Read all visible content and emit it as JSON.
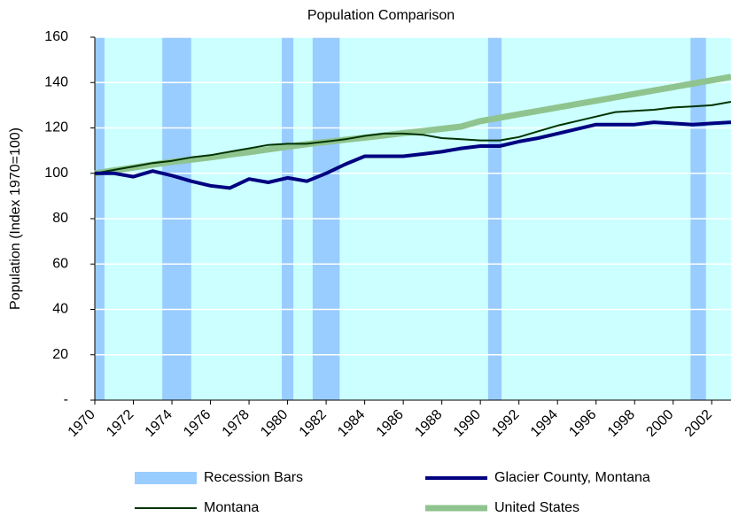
{
  "chart_data": {
    "type": "line",
    "title": "Population Comparison",
    "y_label": "Population (Index 1970=100)",
    "x": [
      1970,
      1971,
      1972,
      1973,
      1974,
      1975,
      1976,
      1977,
      1978,
      1979,
      1980,
      1981,
      1982,
      1983,
      1984,
      1985,
      1986,
      1987,
      1988,
      1989,
      1990,
      1991,
      1992,
      1993,
      1994,
      1995,
      1996,
      1997,
      1998,
      1999,
      2000,
      2001,
      2002,
      2003
    ],
    "recessions": {
      "name": "Recession Bars",
      "color": "#99ccff",
      "ranges": [
        [
          1970,
          1970.5
        ],
        [
          1973.5,
          1975
        ],
        [
          1979.7,
          1980.3
        ],
        [
          1981.3,
          1982.7
        ],
        [
          1990.4,
          1991.1
        ],
        [
          2000.9,
          2001.7
        ]
      ]
    },
    "series": [
      {
        "name": "Glacier County, Montana",
        "color": "#000080",
        "width": 4,
        "values": [
          100,
          100,
          98.5,
          101,
          99,
          96.5,
          94.5,
          93.5,
          97.5,
          96,
          98,
          96.5,
          100,
          104,
          107.5,
          107.5,
          107.5,
          108.5,
          109.5,
          111,
          112,
          112,
          114,
          115.5,
          117.5,
          119.5,
          121.5,
          121.5,
          121.5,
          122.5,
          122,
          121.5,
          122,
          122.5
        ]
      },
      {
        "name": "Montana",
        "color": "#003300",
        "width": 2,
        "values": [
          100,
          101.5,
          103,
          104.5,
          105.5,
          107,
          108,
          109.5,
          111,
          112.5,
          113,
          113,
          114,
          115,
          116.5,
          117.5,
          117.5,
          117,
          115.5,
          115,
          114.5,
          114.5,
          116,
          118.5,
          121,
          123,
          125,
          127,
          127.5,
          128,
          129,
          129.5,
          130,
          131.5
        ]
      },
      {
        "name": "United States",
        "color": "#8fc48f",
        "width": 7,
        "values": [
          100,
          101.3,
          102.5,
          103.8,
          105,
          106,
          107,
          108.2,
          109.3,
          110.5,
          111.7,
          112.8,
          113.8,
          114.8,
          115.7,
          116.7,
          117.7,
          118.6,
          119.6,
          120.6,
          123,
          124.5,
          126,
          127.5,
          129,
          130.5,
          132,
          133.5,
          135,
          136.5,
          138,
          139.5,
          141,
          142.5
        ]
      }
    ],
    "xlim": [
      1970,
      2003
    ],
    "xticks": [
      1970,
      1972,
      1974,
      1976,
      1978,
      1980,
      1982,
      1984,
      1986,
      1988,
      1990,
      1992,
      1994,
      1996,
      1998,
      2000,
      2002
    ],
    "ylim": [
      0,
      160
    ],
    "yticks": [
      {
        "value": 0,
        "label": "-"
      },
      20,
      40,
      60,
      80,
      100,
      120,
      140,
      160
    ],
    "grid": true,
    "background": "#ccffff",
    "legend": "bottom"
  }
}
